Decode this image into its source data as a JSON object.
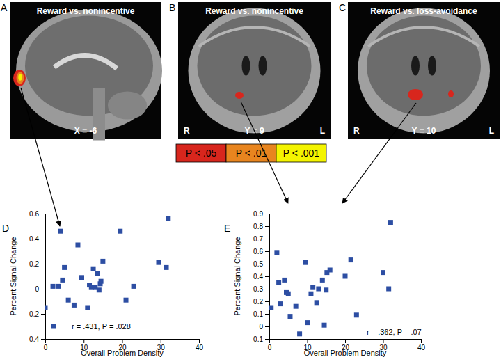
{
  "chart_data": [
    {
      "type": "scatter",
      "title": "D",
      "x_label": "Overall Problem Density",
      "y_label": "Percent Signal Change",
      "annotation": "r = .431, P = .028",
      "x": [
        0,
        2,
        2.1,
        3.5,
        4,
        4.5,
        5,
        6,
        7.5,
        8.5,
        9.5,
        11,
        11.5,
        12,
        12.5,
        13,
        13.5,
        14,
        14.3,
        14.5,
        15,
        19.5,
        21,
        23,
        29.5,
        31.5,
        32
      ],
      "y": [
        -0.15,
        0.02,
        -0.3,
        0.02,
        0.46,
        0.07,
        0.17,
        -0.09,
        -0.13,
        0.35,
        0.09,
        -0.15,
        0.03,
        0.01,
        0.16,
        0.01,
        0.12,
        -0.01,
        0.04,
        0.06,
        0.22,
        0.46,
        -0.09,
        0.02,
        0.21,
        0.17,
        0.56
      ],
      "color": "#2d4ea3",
      "marker": "square",
      "xlim": [
        0,
        40
      ],
      "xticks": [
        0,
        10,
        20,
        30,
        40
      ],
      "ylim": [
        -0.4,
        0.6
      ],
      "yticks": [
        -0.4,
        -0.2,
        0,
        0.2,
        0.4,
        0.6
      ],
      "grid": false
    },
    {
      "type": "scatter",
      "title": "E",
      "x_label": "Overall Problem Density",
      "y_label": "Percent Signal Change",
      "annotation": "r = .362, P = .07",
      "x": [
        0.5,
        2,
        2.5,
        3,
        4,
        4.5,
        5,
        5.5,
        7,
        8,
        9.5,
        10,
        11,
        11.5,
        12.5,
        13,
        14,
        14.5,
        15,
        15.2,
        16,
        20,
        21.5,
        23,
        30,
        31.5,
        32
      ],
      "y": [
        0.15,
        0.59,
        0.35,
        0.18,
        0.37,
        0.27,
        0.26,
        0.08,
        0.16,
        -0.06,
        0.51,
        0.03,
        0.26,
        0.31,
        0.19,
        0.3,
        0.37,
        0.01,
        0.29,
        0.43,
        0.45,
        0.4,
        0.53,
        0.09,
        0.43,
        0.3,
        0.83
      ],
      "color": "#2d4ea3",
      "marker": "square",
      "xlim": [
        0,
        40
      ],
      "xticks": [
        0,
        10,
        20,
        30,
        40
      ],
      "ylim": [
        -0.1,
        0.9
      ],
      "yticks": [
        -0.1,
        0,
        0.1,
        0.2,
        0.3,
        0.4,
        0.5,
        0.6,
        0.7,
        0.8,
        0.9
      ],
      "grid": false
    }
  ],
  "brain_panels": [
    {
      "label": "A",
      "title": "Reward vs. nonincentive",
      "slice": "X = -6"
    },
    {
      "label": "B",
      "title": "Reward vs. nonincentive",
      "slice": "Y = 9",
      "orientation": [
        "R",
        "L"
      ]
    },
    {
      "label": "C",
      "title": "Reward vs. loss-avoidance",
      "slice": "Y = 10",
      "orientation": [
        "R",
        "L"
      ]
    }
  ],
  "p_legend": [
    {
      "label": "P < .05",
      "color": "#d8261d"
    },
    {
      "label": "P < .01",
      "color": "#e8851f"
    },
    {
      "label": "P < .001",
      "color": "#f4f400"
    }
  ]
}
